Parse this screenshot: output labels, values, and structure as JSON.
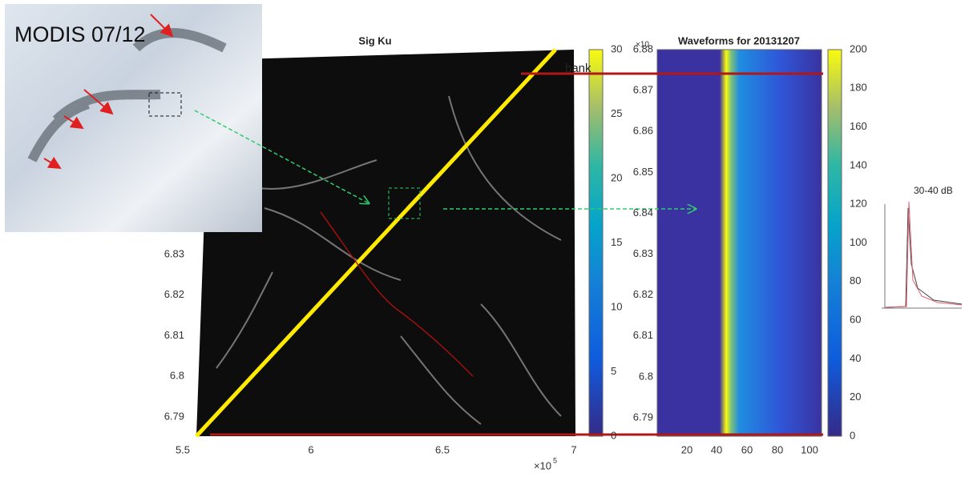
{
  "modis": {
    "label": "MODIS 07/12"
  },
  "sar": {
    "title": "Sig Ku",
    "yticks": [
      "6.79",
      "6.8",
      "6.81",
      "6.82",
      "6.83"
    ],
    "xticks": [
      "5.5",
      "6",
      "6.5",
      "7"
    ],
    "x_multiplier": "×10",
    "x_exponent": "5"
  },
  "colorbar1": {
    "ticks": [
      "0",
      "5",
      "10",
      "15",
      "20",
      "25",
      "30"
    ]
  },
  "waveforms": {
    "title": "Waveforms for 20131207",
    "yticks": [
      "6.79",
      "6.8",
      "6.81",
      "6.82",
      "6.83",
      "6.84",
      "6.85",
      "6.86",
      "6.87",
      "6.88"
    ],
    "xticks": [
      "20",
      "40",
      "60",
      "80",
      "100"
    ],
    "y_multiplier": "×10"
  },
  "colorbar2": {
    "ticks": [
      "0",
      "20",
      "40",
      "60",
      "80",
      "100",
      "120",
      "140",
      "160",
      "180",
      "200"
    ]
  },
  "annotations": {
    "bank": "bank",
    "inset": "30-40 dB"
  }
}
